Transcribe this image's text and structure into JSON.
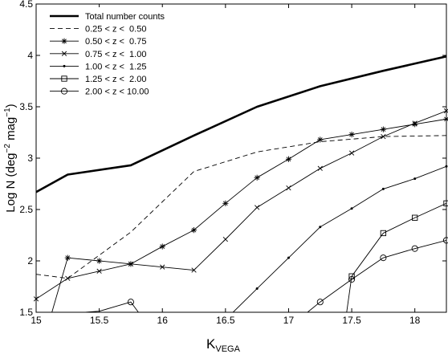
{
  "chart_data": {
    "type": "line",
    "title": "",
    "xlabel": "K",
    "xlabel_subscript": "VEGA",
    "ylabel": "Log N (deg",
    "ylabel_sup1": "−2",
    "ylabel_mid": " mag",
    "ylabel_sup2": "−1",
    "ylabel_end": ")",
    "xlim": [
      15,
      18.25
    ],
    "ylim": [
      1.5,
      4.5
    ],
    "xticks": [
      15,
      15.5,
      16,
      16.5,
      17,
      17.5,
      18
    ],
    "yticks": [
      1.5,
      2,
      2.5,
      3,
      3.5,
      4,
      4.5
    ],
    "xtick_labels": [
      "15",
      "15.5",
      "16",
      "16.5",
      "17",
      "17.5",
      "18"
    ],
    "ytick_labels": [
      "1.5",
      "2",
      "2.5",
      "3",
      "3.5",
      "4",
      "4.5"
    ],
    "grid": false,
    "legend_position": "top-left",
    "series": [
      {
        "name": "Total number counts",
        "style": "solid-thick",
        "marker": "none",
        "x": [
          15,
          15.25,
          15.75,
          16.25,
          16.75,
          17.25,
          17.75,
          18.25
        ],
        "y": [
          2.67,
          2.84,
          2.93,
          3.22,
          3.5,
          3.7,
          3.85,
          3.99
        ]
      },
      {
        "name": "0.25 < z <  0.50",
        "style": "dashed",
        "marker": "none",
        "x": [
          15,
          15.25,
          15.75,
          16.25,
          16.75,
          17.25,
          17.75,
          18.25
        ],
        "y": [
          1.87,
          1.83,
          2.28,
          2.87,
          3.06,
          3.16,
          3.21,
          3.22
        ]
      },
      {
        "name": "0.50 < z <  0.75",
        "style": "solid",
        "marker": "asterisk",
        "x": [
          15.125,
          15.25,
          15.5,
          15.75,
          16,
          16.25,
          16.5,
          16.75,
          17,
          17.25,
          17.5,
          17.75,
          18,
          18.25
        ],
        "y": [
          1.5,
          2.03,
          2.0,
          1.97,
          2.14,
          2.3,
          2.56,
          2.81,
          2.99,
          3.18,
          3.23,
          3.28,
          3.33,
          3.38
        ]
      },
      {
        "name": "0.75 < z <  1.00",
        "style": "solid",
        "marker": "x",
        "x": [
          15,
          15.25,
          15.5,
          15.75,
          16,
          16.25,
          16.5,
          16.75,
          17,
          17.25,
          17.5,
          17.75,
          18,
          18.25
        ],
        "y": [
          1.63,
          1.83,
          1.9,
          1.97,
          1.94,
          1.91,
          2.21,
          2.52,
          2.71,
          2.9,
          3.05,
          3.21,
          3.34,
          3.46
        ]
      },
      {
        "name": "1.00 < z <  1.25",
        "style": "solid",
        "marker": "dot",
        "x": [
          16.56,
          16.75,
          17,
          17.25,
          17.5,
          17.75,
          18,
          18.25
        ],
        "y": [
          1.5,
          1.73,
          2.03,
          2.33,
          2.51,
          2.7,
          2.8,
          2.92
        ]
      },
      {
        "name": "1.25 < z <  2.00",
        "style": "solid",
        "marker": "square",
        "x": [
          17.46,
          17.5,
          17.75,
          18,
          18.25
        ],
        "y": [
          1.5,
          1.85,
          2.27,
          2.42,
          2.56
        ]
      },
      {
        "name": "2.00 < z < 10.00",
        "style": "solid",
        "marker": "circle",
        "segments": [
          {
            "x": [
              15.39,
              15.5,
              15.75,
              15.81
            ],
            "y": [
              1.5,
              1.51,
              1.6,
              1.5
            ]
          },
          {
            "x": [
              17.15,
              17.25,
              17.5,
              17.75,
              18,
              18.25
            ],
            "y": [
              1.5,
              1.6,
              1.82,
              2.03,
              2.12,
              2.2
            ]
          }
        ],
        "markers_x": [
          15.5,
          15.75,
          17.25,
          17.5,
          17.75,
          18,
          18.25
        ],
        "markers_y": [
          1.51,
          1.6,
          1.6,
          1.82,
          2.03,
          2.12,
          2.2
        ]
      }
    ]
  }
}
